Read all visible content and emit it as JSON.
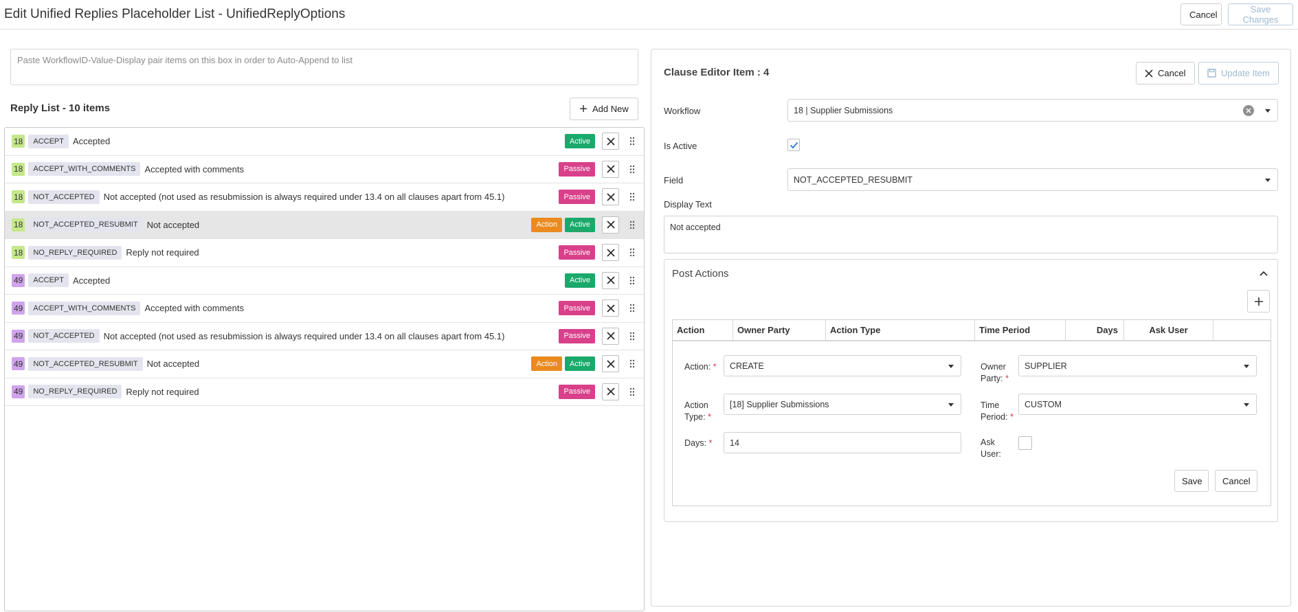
{
  "header": {
    "title": "Edit Unified Replies Placeholder List - UnifiedReplyOptions",
    "cancel_label": "Cancel",
    "save_label": "Save Changes"
  },
  "left": {
    "paste_placeholder": "Paste WorkflowID-Value-Display pair items on this box in order to Auto-Append to list",
    "list_title": "Reply List - 10 items",
    "add_new_label": "Add New",
    "rows": [
      {
        "wf": "18",
        "code": "ACCEPT",
        "display": "Accepted",
        "badges": [
          "Active"
        ]
      },
      {
        "wf": "18",
        "code": "ACCEPT_WITH_COMMENTS",
        "display": "Accepted with comments",
        "badges": [
          "Passive"
        ]
      },
      {
        "wf": "18",
        "code": "NOT_ACCEPTED",
        "display": "Not accepted (not used as resubmission is always required under 13.4 on all clauses apart from 45.1)",
        "badges": [
          "Passive"
        ]
      },
      {
        "wf": "18",
        "code": "NOT_ACCEPTED_RESUBMIT",
        "display": "Not accepted",
        "badges": [
          "Action",
          "Active"
        ],
        "selected": true
      },
      {
        "wf": "18",
        "code": "NO_REPLY_REQUIRED",
        "display": "Reply not required",
        "badges": [
          "Passive"
        ]
      },
      {
        "wf": "49",
        "code": "ACCEPT",
        "display": "Accepted",
        "badges": [
          "Active"
        ]
      },
      {
        "wf": "49",
        "code": "ACCEPT_WITH_COMMENTS",
        "display": "Accepted with comments",
        "badges": [
          "Passive"
        ]
      },
      {
        "wf": "49",
        "code": "NOT_ACCEPTED",
        "display": "Not accepted (not used as resubmission is always required under 13.4 on all clauses apart from 45.1)",
        "badges": [
          "Passive"
        ]
      },
      {
        "wf": "49",
        "code": "NOT_ACCEPTED_RESUBMIT",
        "display": "Not accepted",
        "badges": [
          "Action",
          "Active"
        ]
      },
      {
        "wf": "49",
        "code": "NO_REPLY_REQUIRED",
        "display": "Reply not required",
        "badges": [
          "Passive"
        ]
      }
    ]
  },
  "editor": {
    "title": "Clause Editor Item : 4",
    "cancel_label": "Cancel",
    "update_label": "Update Item",
    "workflow_label": "Workflow",
    "workflow_value": "18 | Supplier Submissions",
    "is_active_label": "Is Active",
    "is_active": true,
    "field_label": "Field",
    "field_value": "NOT_ACCEPTED_RESUBMIT",
    "display_text_label": "Display Text",
    "display_text_value": "Not accepted",
    "post_actions": {
      "title": "Post Actions",
      "columns": [
        "Action",
        "Owner Party",
        "Action Type",
        "Time Period",
        "Days",
        "Ask User"
      ],
      "form": {
        "action_label": "Action:",
        "action_value": "CREATE",
        "owner_label_1": "Owner",
        "owner_label_2": "Party:",
        "owner_value": "SUPPLIER",
        "action_type_label_1": "Action",
        "action_type_label_2": "Type:",
        "action_type_value": "[18] Supplier Submissions",
        "time_period_label_1": "Time",
        "time_period_label_2": "Period:",
        "time_period_value": "CUSTOM",
        "days_label": "Days:",
        "days_value": "14",
        "ask_user_label_1": "Ask",
        "ask_user_label_2": "User:",
        "ask_user": false,
        "required_mark": "*",
        "save_label": "Save",
        "cancel_label": "Cancel"
      }
    }
  },
  "colors": {
    "wf18": "#c5e88a",
    "wf49": "#cfa4ec",
    "active": "#1aa96b",
    "passive": "#d8408a",
    "action": "#ea8a1f",
    "check": "#2b7cd3"
  }
}
